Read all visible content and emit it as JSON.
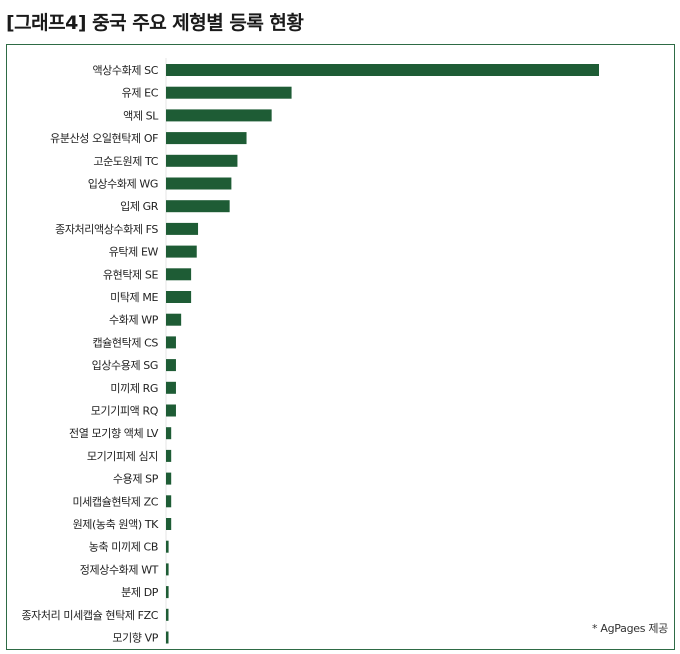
{
  "header": {
    "title": "[그래프4] 중국 주요 제형별 등록 현황"
  },
  "credit": "* AgPages 제공",
  "colors": {
    "bar": "#1e5c35",
    "frame": "#2e6b45"
  },
  "chart_data": {
    "type": "bar",
    "orientation": "horizontal",
    "title": "[그래프4] 중국 주요 제형별 등록 현황",
    "xlabel": "",
    "ylabel": "",
    "xlim": [
      0,
      100
    ],
    "grid": false,
    "legend": "none",
    "categories": [
      "액상수화제 SC",
      "유제 EC",
      "액제 SL",
      "유분산성 오일현탁제 OF",
      "고순도원제 TC",
      "입상수화제 WG",
      "입제 GR",
      "종자처리액상수화제 FS",
      "유탁제 EW",
      "유현탁제 SE",
      "미탁제 ME",
      "수화제 WP",
      "캡슐현탁제 CS",
      "입상수용제 SG",
      "미끼제 RG",
      "모기기피액 RQ",
      "전열 모기향 액체 LV",
      "모기기피제 심지",
      "수용제 SP",
      "미세캡슐현탁제 ZC",
      "원제(농축 원액) TK",
      "농축 미끼제 CB",
      "정제상수화제 WT",
      "분제 DP",
      "종자처리 미세캡슐 현탁제 FZC",
      "모기향 VP"
    ],
    "values": [
      100,
      29,
      24.4,
      18.6,
      16.5,
      15.1,
      14.7,
      7.4,
      7.1,
      5.8,
      5.8,
      3.5,
      2.3,
      2.3,
      2.3,
      2.3,
      1.2,
      1.2,
      1.2,
      1.2,
      1.2,
      0.6,
      0.6,
      0.6,
      0.5,
      0.5
    ]
  }
}
